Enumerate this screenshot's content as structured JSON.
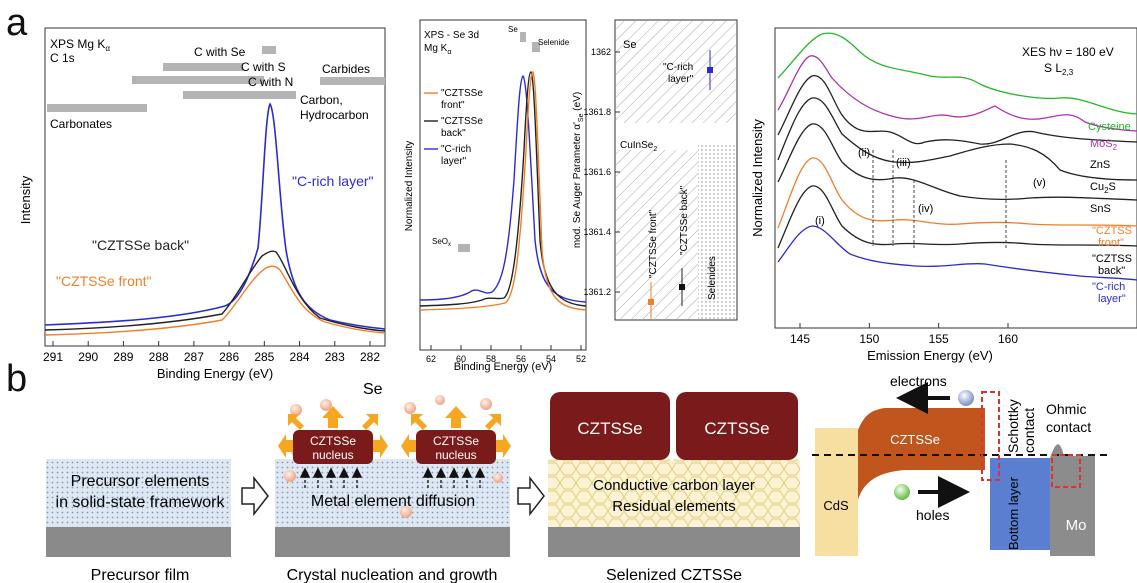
{
  "panel_labels": {
    "a": "a",
    "b": "b"
  },
  "chart1": {
    "title_line1": "XPS Mg K",
    "title_alpha": "α",
    "title_line2": "C 1s",
    "ylabel": "Intensity",
    "xlabel": "Binding Energy (eV)",
    "ticks": [
      "291",
      "290",
      "289",
      "288",
      "287",
      "286",
      "285",
      "284",
      "283",
      "282"
    ],
    "refs": {
      "c_se": "C with Se",
      "c_s": "C with S",
      "c_n": "C with N",
      "carbides": "Carbides",
      "carbon1": "Carbon,",
      "carbon2": "Hydrocarbon",
      "carbonates": "Carbonates"
    },
    "series": {
      "crich": "\"C-rich layer\"",
      "back": "\"CZTSSe back\"",
      "front": "\"CZTSSe front\""
    }
  },
  "chart2": {
    "title_line1": "XPS - Se 3d",
    "title_line2": "Mg K",
    "title_alpha": "α",
    "ylabel": "Normalized Intensity",
    "xlabel": "Binding Energy (eV)",
    "ticks": [
      "62",
      "60",
      "58",
      "56",
      "54",
      "52"
    ],
    "refs": {
      "se": "Se",
      "selenide": "Selenide",
      "seox": "SeO",
      "seox_sub": "x"
    },
    "legend": [
      "\"CZTSSe",
      "front\"",
      "\"CZTSSe",
      "back\"",
      "\"C-rich",
      "layer\""
    ]
  },
  "chart3": {
    "ylabel": "mod. Se Auger Parameter α'",
    "ylabel_sub": "Se",
    "ylabel_unit": " (eV)",
    "ticks": [
      "1361.2",
      "1361.4",
      "1361.6",
      "1361.8",
      "1362"
    ],
    "regions": {
      "se": "Se",
      "cuinse": "CuInSe",
      "cuinse_sub": "2",
      "selenides": "Selenides"
    },
    "points": {
      "crich1": "\"C-rich",
      "crich2": "layer\"",
      "front": "\"CZTSSe front\"",
      "back": "\"CZTSSe back\""
    }
  },
  "chart4": {
    "title_line1": "XES  hν = 180 eV",
    "title_line2": "S L",
    "title_sub": "2,3",
    "ylabel": "Normalized Intensity",
    "xlabel": "Emission Energy (eV)",
    "ticks": [
      "145",
      "150",
      "155",
      "160"
    ],
    "labels": {
      "cysteine": "Cysteine",
      "mos2": "MoS",
      "mos2_sub": "2",
      "zns": "ZnS",
      "cu2s": "Cu",
      "cu2s_sub": "2",
      "cu2s_end": "S",
      "sns": "SnS",
      "front1": "\"CZTSS",
      "front2": "front\"",
      "back1": "\"CZTSS",
      "back2": "back\"",
      "crich1": "\"C-rich",
      "crich2": "layer\""
    },
    "features": [
      "(i)",
      "(ii)",
      "(iii)",
      "(iv)",
      "(v)"
    ]
  },
  "schematic": {
    "precursor_text1": "Precursor elements",
    "precursor_text2": "in solid-state framework",
    "precursor_caption": "Precursor film",
    "se_label": "Se",
    "nucleus1": "CZTSSe",
    "nucleus2": "nucleus",
    "diffusion": "Metal element diffusion",
    "nucleation_caption": "Crystal nucleation and growth",
    "grain": "CZTSSe",
    "carbon1": "Conductive carbon layer",
    "carbon2": "Residual elements",
    "selenized_caption": "Selenized  CZTSSe",
    "band": {
      "electrons": "electrons",
      "holes": "holes",
      "czts": "CZTSSe",
      "cds": "CdS",
      "bottom": "Bottom layer",
      "mo": "Mo",
      "schottky1": "Schottky",
      "schottky2": "contact",
      "ohmic1": "Ohmic",
      "ohmic2": "contact"
    }
  },
  "colors": {
    "crich": "#2b2bd6",
    "front": "#f07f2a",
    "back": "#222222",
    "cysteine": "#28b828",
    "mos2": "#b030b0",
    "czts_dark": "#7a1a1a",
    "czts_band": "#c0561e",
    "cds": "#f6dfa0",
    "bottom_layer": "#5a7fd0",
    "mo": "#8c8c8c"
  }
}
